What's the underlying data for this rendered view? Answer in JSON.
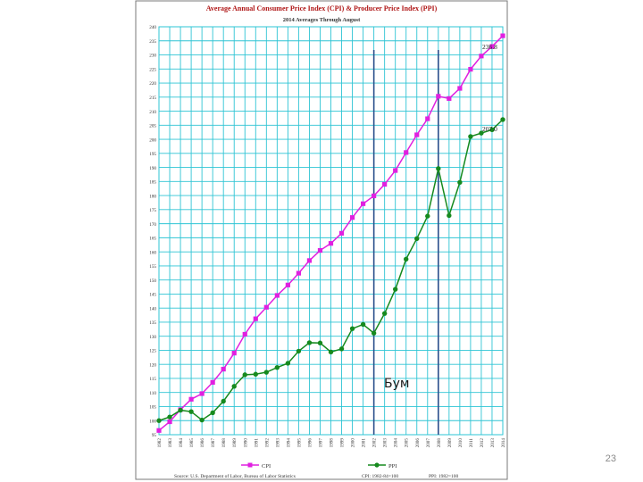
{
  "slide": {
    "number": "23"
  },
  "colors": {
    "grid": "#2ec4d4",
    "cpi": "#e020e0",
    "ppi": "#168a1e",
    "marker_line": "#2b4f8c",
    "title": "#b01818",
    "frame": "#7a7a7a"
  },
  "chart_data": {
    "type": "line",
    "title": "Average Annual Consumer Price Index (CPI) & Producer Price Index (PPI)",
    "subtitle": "2014 Averages Through August",
    "categories": [
      "1982",
      "1983",
      "1984",
      "1985",
      "1986",
      "1987",
      "1988",
      "1989",
      "1990",
      "1991",
      "1992",
      "1993",
      "1994",
      "1995",
      "1996",
      "1997",
      "1998",
      "1999",
      "2000",
      "2001",
      "2002",
      "2003",
      "2004",
      "2005",
      "2006",
      "2007",
      "2008",
      "2009",
      "2010",
      "2011",
      "2012",
      "2013",
      "2014"
    ],
    "x_tick_labels": [
      "1982",
      "1983",
      "1984",
      "1985",
      "1986",
      "1987",
      "1988",
      "1989",
      "1990",
      "1991",
      "1992",
      "1993",
      "1994",
      "1995",
      "1996",
      "1997",
      "1998",
      "1999",
      "2000",
      "2001",
      "2002",
      "2003",
      "2004",
      "2005",
      "2006",
      "2007",
      "2008",
      "2009",
      "2010",
      "2011",
      "2012",
      "2013",
      "2014"
    ],
    "ylim": [
      95,
      240
    ],
    "y_ticks": [
      95,
      100,
      105,
      110,
      115,
      120,
      125,
      130,
      135,
      140,
      145,
      150,
      155,
      160,
      165,
      170,
      175,
      180,
      185,
      190,
      195,
      200,
      205,
      210,
      215,
      220,
      225,
      230,
      235,
      240
    ],
    "grid": true,
    "series": [
      {
        "name": "CPI",
        "values": [
          96.5,
          99.6,
          103.9,
          107.6,
          109.6,
          113.6,
          118.3,
          124.0,
          130.7,
          136.2,
          140.3,
          144.5,
          148.2,
          152.4,
          156.9,
          160.5,
          163.0,
          166.6,
          172.2,
          177.1,
          179.9,
          184.0,
          188.9,
          195.3,
          201.6,
          207.3,
          215.3,
          214.5,
          218.1,
          224.9,
          229.6,
          233.0,
          236.8
        ]
      },
      {
        "name": "PPI",
        "values": [
          100.0,
          101.3,
          103.7,
          103.2,
          100.2,
          102.8,
          106.9,
          112.2,
          116.3,
          116.5,
          117.2,
          118.9,
          120.4,
          124.7,
          127.7,
          127.6,
          124.4,
          125.5,
          132.7,
          134.2,
          131.1,
          138.1,
          146.7,
          157.4,
          164.7,
          172.7,
          189.6,
          172.9,
          184.7,
          201.0,
          202.2,
          203.4,
          207.0
        ]
      }
    ],
    "end_labels": {
      "cpi": "236.8",
      "ppi": "207.0"
    },
    "annotation": "Бум",
    "vertical_markers": [
      "2002",
      "2008"
    ],
    "legend": {
      "position": "bottom",
      "entries": [
        "CPI",
        "PPI"
      ]
    },
    "source_text": "Source: U.S. Department of Labor, Bureau of Labor Statistics",
    "base_notes": [
      "CPI: 1982-84=100",
      "PPI: 1982=100"
    ]
  }
}
